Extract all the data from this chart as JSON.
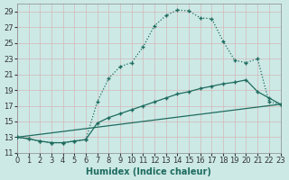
{
  "xlabel": "Humidex (Indice chaleur)",
  "bg_color": "#cce9e6",
  "grid_color": "#b8d8d5",
  "line_color": "#1e6b5e",
  "xlim": [
    0,
    23
  ],
  "ylim": [
    11,
    30
  ],
  "xticks": [
    0,
    1,
    2,
    3,
    4,
    5,
    6,
    7,
    8,
    9,
    10,
    11,
    12,
    13,
    14,
    15,
    16,
    17,
    18,
    19,
    20,
    21,
    22,
    23
  ],
  "yticks": [
    11,
    13,
    15,
    17,
    19,
    21,
    23,
    25,
    27,
    29
  ],
  "line1_x": [
    0,
    1,
    2,
    3,
    4,
    5,
    6,
    7,
    8,
    9,
    10,
    11,
    12,
    13,
    14,
    15,
    16,
    17,
    18,
    19,
    20,
    21,
    22,
    23
  ],
  "line1_y": [
    13,
    12.8,
    12.5,
    12.3,
    12.3,
    12.5,
    12.7,
    17.5,
    20.5,
    22.0,
    22.5,
    24.5,
    27.2,
    28.5,
    29.2,
    29.1,
    28.2,
    28.1,
    25.2,
    22.8,
    22.5,
    23.0,
    17.5,
    17.2
  ],
  "line2_x": [
    0,
    1,
    2,
    3,
    4,
    5,
    6,
    7,
    8,
    9,
    10,
    11,
    12,
    13,
    14,
    15,
    16,
    17,
    18,
    19,
    20,
    21,
    22,
    23
  ],
  "line2_y": [
    13,
    12.8,
    12.5,
    12.3,
    12.3,
    12.5,
    12.7,
    14.8,
    15.5,
    16.0,
    16.5,
    17.0,
    17.5,
    18.0,
    18.5,
    18.8,
    19.2,
    19.5,
    19.8,
    20.0,
    20.3,
    18.8,
    18.0,
    17.2
  ],
  "line3_x": [
    0,
    23
  ],
  "line3_y": [
    13.0,
    17.2
  ],
  "xlabel_fontsize": 7,
  "tick_fontsize": 6
}
